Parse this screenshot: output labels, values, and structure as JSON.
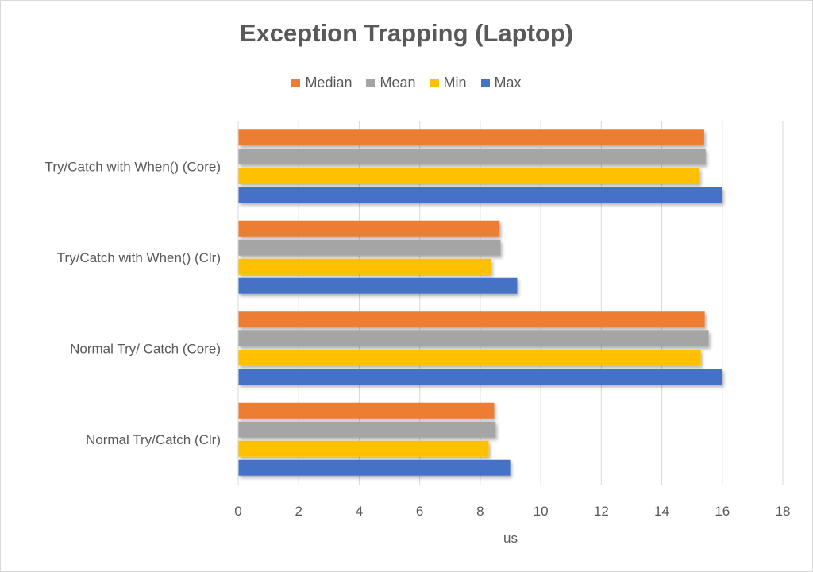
{
  "chart_data": {
    "type": "bar",
    "orientation": "horizontal",
    "title": "Exception Trapping (Laptop)",
    "xlabel": "us",
    "ylabel": "",
    "xlim": [
      0,
      18
    ],
    "xticks": [
      0,
      2,
      4,
      6,
      8,
      10,
      12,
      14,
      16,
      18
    ],
    "grid": true,
    "legend_position": "top",
    "categories": [
      "Try/Catch with When() (Core)",
      "Try/Catch with When() (Clr)",
      "Normal Try/ Catch (Core)",
      "Normal Try/Catch (Clr)"
    ],
    "series": [
      {
        "name": "Median",
        "color": "#ed7d31",
        "values": [
          15.4,
          8.64,
          15.42,
          8.46
        ]
      },
      {
        "name": "Mean",
        "color": "#a5a5a5",
        "values": [
          15.45,
          8.67,
          15.55,
          8.51
        ]
      },
      {
        "name": "Min",
        "color": "#ffc000",
        "values": [
          15.25,
          8.36,
          15.29,
          8.28
        ]
      },
      {
        "name": "Max",
        "color": "#4472c4",
        "values": [
          16.0,
          9.22,
          16.0,
          8.99
        ]
      }
    ]
  }
}
